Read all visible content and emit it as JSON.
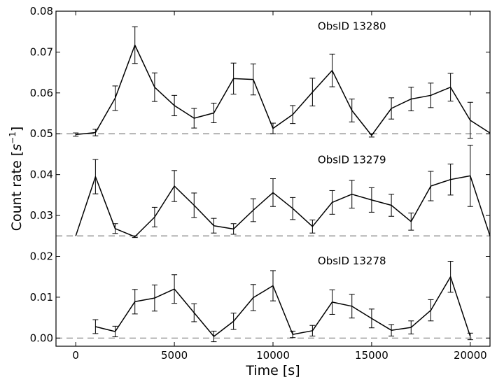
{
  "chart_data": {
    "type": "line",
    "title": "",
    "xlabel": "Time [s]",
    "ylabel_prefix": "Count rate [",
    "ylabel_unit": "s",
    "ylabel_exp": "−1",
    "ylabel_suffix": "]",
    "xlim": [
      -1000,
      21000
    ],
    "ylim": [
      -0.002,
      0.08
    ],
    "x_ticks": [
      0,
      5000,
      10000,
      15000,
      20000
    ],
    "x_tick_labels": [
      "0",
      "5000",
      "10000",
      "15000",
      "20000"
    ],
    "y_ticks": [
      0.0,
      0.01,
      0.02,
      0.03,
      0.04,
      0.05,
      0.06,
      0.07,
      0.08
    ],
    "y_tick_labels": [
      "0.00",
      "0.01",
      "0.02",
      "0.03",
      "0.04",
      "0.05",
      "0.06",
      "0.07",
      "0.08"
    ],
    "baseline_color": "#808080",
    "line_color": "#000000",
    "series": [
      {
        "name": "ObsID 13280",
        "label_at": [
          14000,
          0.0755
        ],
        "baseline": 0.05,
        "x": [
          0,
          1000,
          2000,
          3000,
          4000,
          5000,
          6000,
          7000,
          8000,
          9000,
          10000,
          11000,
          12000,
          13000,
          14000,
          15000,
          16000,
          17000,
          18000,
          19000,
          20000,
          21000
        ],
        "y": [
          0.0498,
          0.0503,
          0.0587,
          0.0717,
          0.0614,
          0.0569,
          0.0538,
          0.0551,
          0.0635,
          0.0633,
          0.0513,
          0.0547,
          0.0602,
          0.0655,
          0.0557,
          0.0496,
          0.0562,
          0.0585,
          0.0594,
          0.0614,
          0.0533,
          0.0502
        ],
        "err": [
          0.0004,
          0.0008,
          0.003,
          0.0045,
          0.0035,
          0.0025,
          0.0024,
          0.0024,
          0.0038,
          0.0038,
          0.0013,
          0.0022,
          0.0034,
          0.004,
          0.0028,
          0.0004,
          0.0026,
          0.0029,
          0.003,
          0.0034,
          0.0044,
          0
        ]
      },
      {
        "name": "ObsID 13279",
        "label_at": [
          14000,
          0.0428
        ],
        "baseline": 0.025,
        "x": [
          0,
          1000,
          2000,
          3000,
          4000,
          5000,
          6000,
          7000,
          8000,
          9000,
          10000,
          11000,
          12000,
          13000,
          14000,
          15000,
          16000,
          17000,
          18000,
          19000,
          20000,
          21000
        ],
        "y": [
          0.025,
          0.0395,
          0.0268,
          0.0248,
          0.0296,
          0.0372,
          0.0325,
          0.0275,
          0.0267,
          0.0313,
          0.0356,
          0.0317,
          0.0273,
          0.0332,
          0.0352,
          0.0338,
          0.0325,
          0.0285,
          0.0372,
          0.0388,
          0.0397,
          0.025
        ],
        "err": [
          0,
          0.0042,
          0.0012,
          0.0002,
          0.0024,
          0.0038,
          0.003,
          0.0018,
          0.0013,
          0.0028,
          0.0034,
          0.0027,
          0.0016,
          0.0029,
          0.0034,
          0.003,
          0.0027,
          0.0021,
          0.0036,
          0.0038,
          0.0075,
          0
        ]
      },
      {
        "name": "ObsID 13278",
        "label_at": [
          14000,
          0.018
        ],
        "baseline": 0.0,
        "x": [
          1000,
          2000,
          3000,
          4000,
          5000,
          6000,
          7000,
          8000,
          9000,
          10000,
          11000,
          12000,
          13000,
          14000,
          15000,
          16000,
          17000,
          18000,
          19000,
          20000
        ],
        "y": [
          0.0028,
          0.0016,
          0.0089,
          0.0098,
          0.012,
          0.0062,
          0.0004,
          0.0041,
          0.0099,
          0.0128,
          0.0009,
          0.0018,
          0.0088,
          0.0078,
          0.0048,
          0.0019,
          0.0026,
          0.0068,
          0.015,
          0.0004
        ],
        "err": [
          0.0017,
          0.0013,
          0.003,
          0.0032,
          0.0035,
          0.0022,
          0.0013,
          0.002,
          0.0032,
          0.0037,
          0.0008,
          0.0013,
          0.003,
          0.0029,
          0.0023,
          0.0014,
          0.0016,
          0.0026,
          0.0038,
          0.0008
        ]
      }
    ]
  }
}
